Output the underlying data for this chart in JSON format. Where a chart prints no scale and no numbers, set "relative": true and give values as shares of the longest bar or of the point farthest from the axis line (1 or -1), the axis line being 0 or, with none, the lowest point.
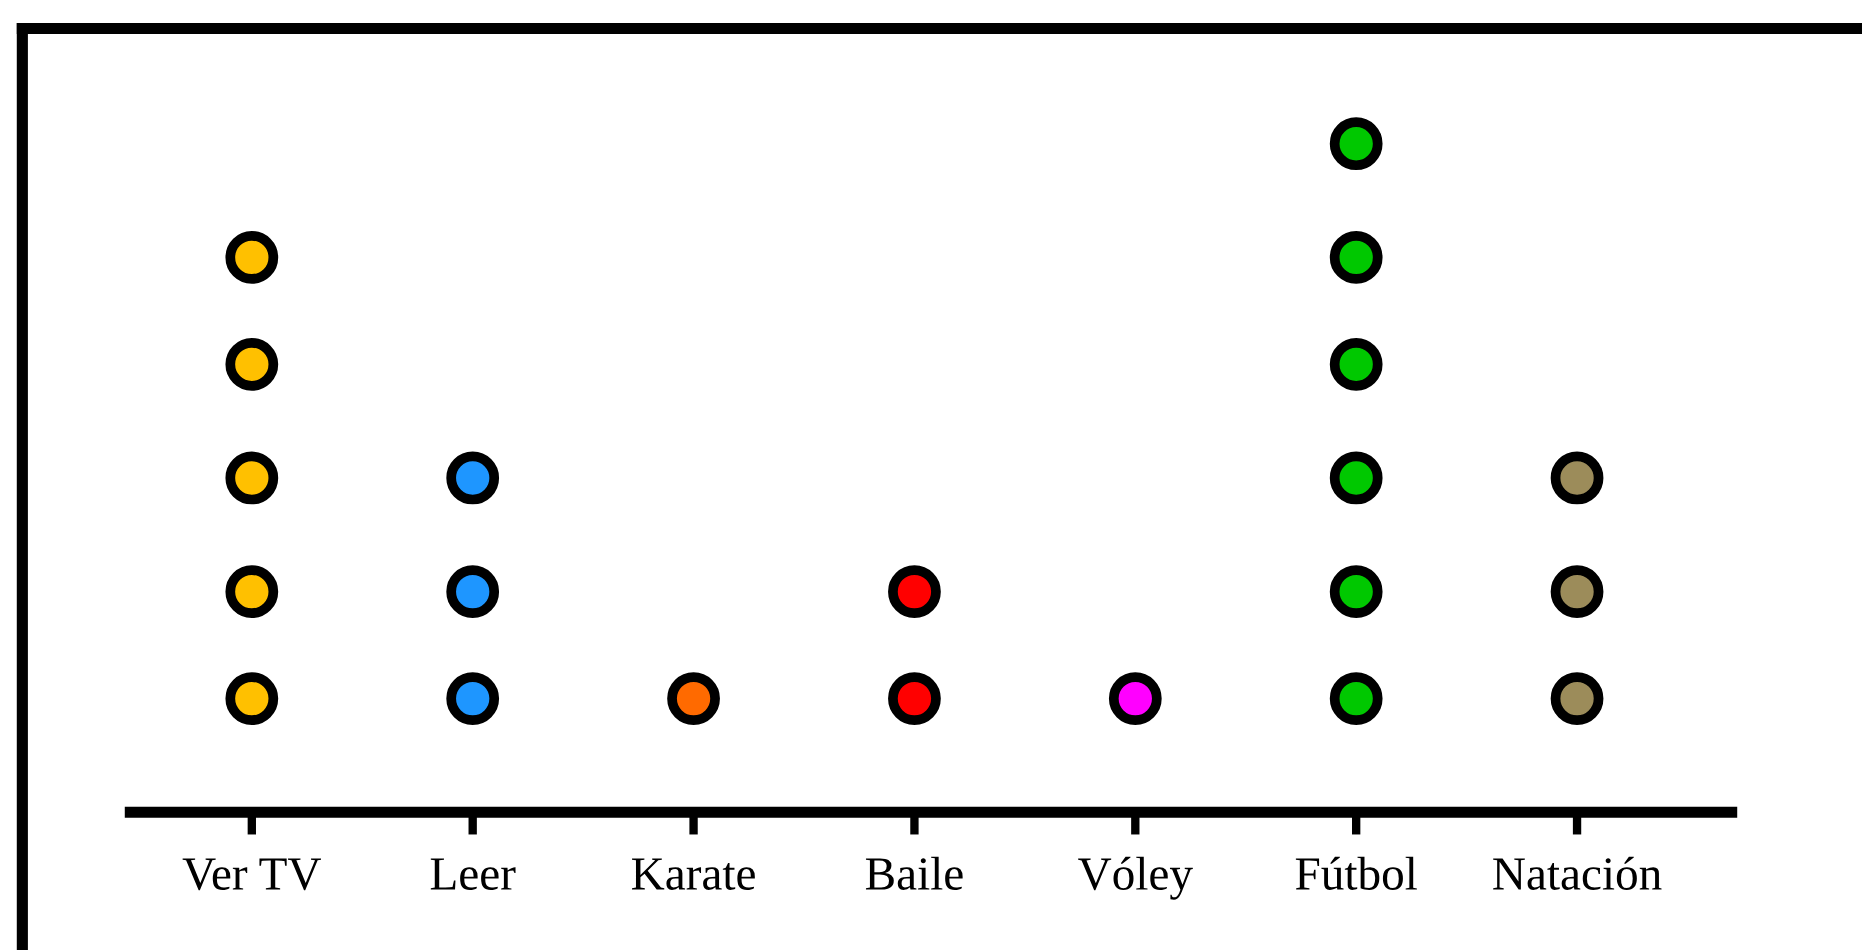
{
  "chart_data": {
    "type": "scatter",
    "relative": true,
    "categories": [
      "Ver TV",
      "Leer",
      "Karate",
      "Baile",
      "Vóley",
      "Fútbol",
      "Natación"
    ],
    "series": [
      {
        "x": [
          "Ver TV",
          "Ver TV",
          "Ver TV",
          "Ver TV",
          "Ver TV",
          "Leer",
          "Leer",
          "Leer",
          "Karate",
          "Baile",
          "Baile",
          "Vóley",
          "Fútbol",
          "Fútbol",
          "Fútbol",
          "Fútbol",
          "Fútbol",
          "Fútbol",
          "Natación",
          "Natación",
          "Natación"
        ],
        "values": [
          0.17,
          0.33,
          0.5,
          0.67,
          0.83,
          0.17,
          0.33,
          0.5,
          0.17,
          0.17,
          0.33,
          0.17,
          0.17,
          0.33,
          0.5,
          0.67,
          0.83,
          1,
          0.17,
          0.33,
          0.5
        ],
        "colors": [
          "#ffc000",
          "#ffc000",
          "#ffc000",
          "#ffc000",
          "#ffc000",
          "#1e96ff",
          "#1e96ff",
          "#1e96ff",
          "#ff6a00",
          "#ff0000",
          "#ff0000",
          "#ff00ff",
          "#00c800",
          "#00c800",
          "#00c800",
          "#00c800",
          "#00c800",
          "#00c800",
          "#9c8c5a",
          "#9c8c5a",
          "#9c8c5a"
        ]
      }
    ],
    "marker": "circle",
    "grid": false,
    "legend": false
  }
}
